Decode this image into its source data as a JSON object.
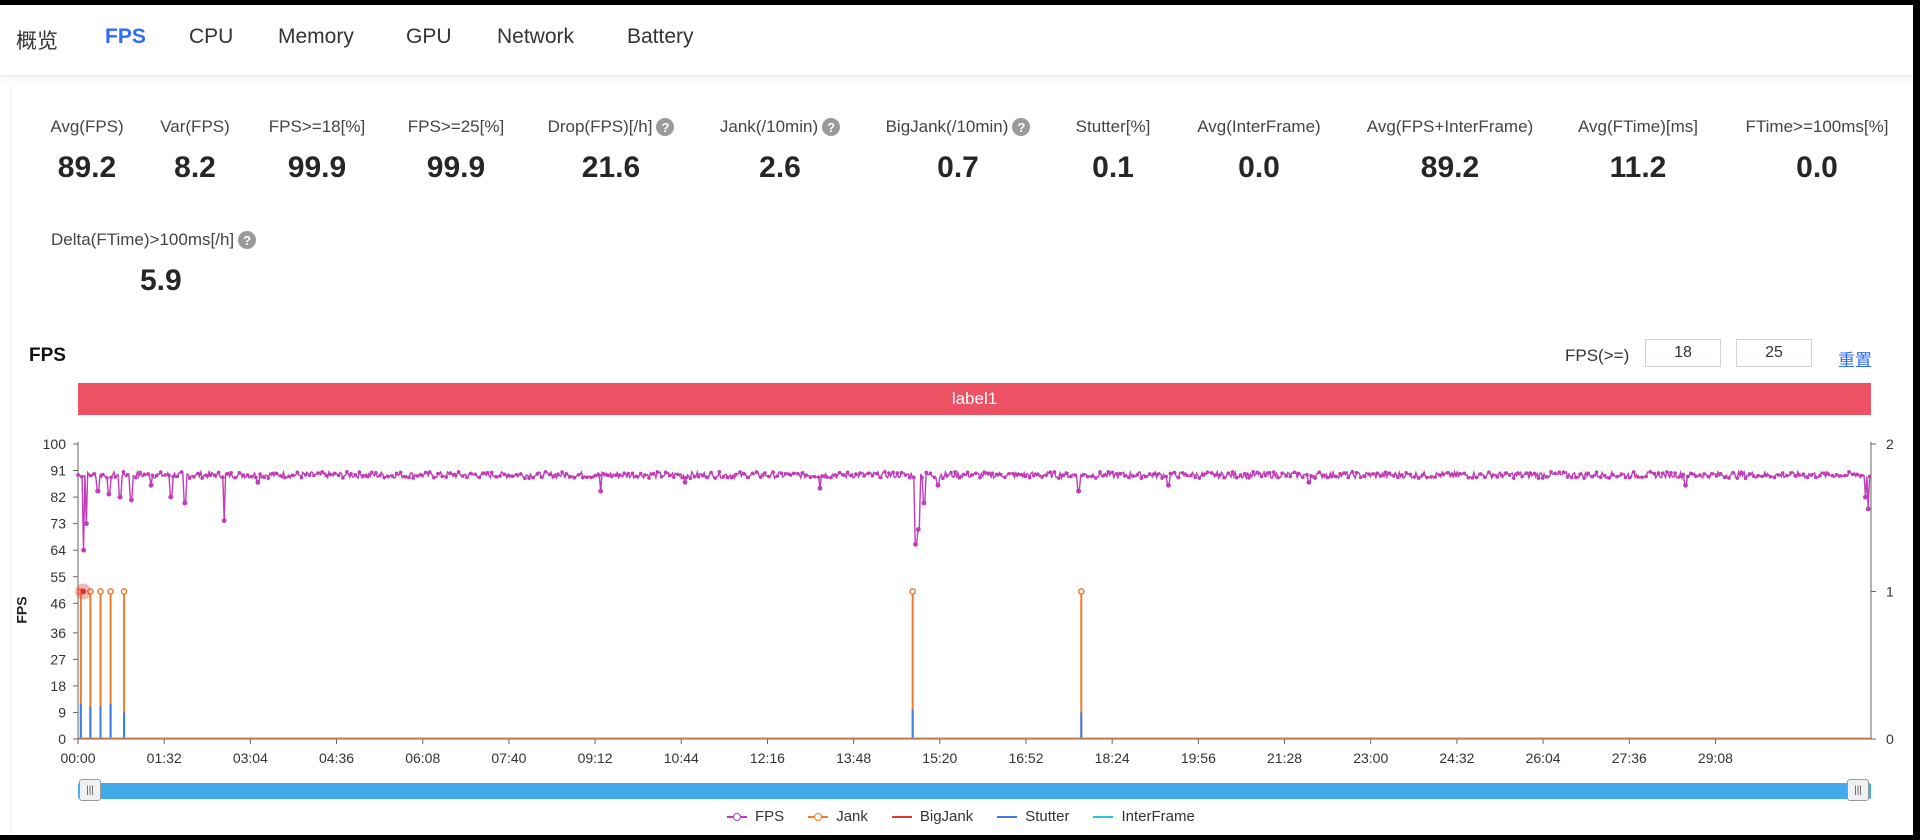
{
  "nav": {
    "tabs": [
      {
        "label": "概览"
      },
      {
        "label": "FPS"
      },
      {
        "label": "CPU"
      },
      {
        "label": "Memory"
      },
      {
        "label": "GPU"
      },
      {
        "label": "Network"
      },
      {
        "label": "Battery"
      }
    ],
    "active": "FPS"
  },
  "metrics": [
    {
      "label": "Avg(FPS)",
      "value": "89.2",
      "help": false
    },
    {
      "label": "Var(FPS)",
      "value": "8.2",
      "help": false
    },
    {
      "label": "FPS>=18[%]",
      "value": "99.9",
      "help": false
    },
    {
      "label": "FPS>=25[%]",
      "value": "99.9",
      "help": false
    },
    {
      "label": "Drop(FPS)[/h]",
      "value": "21.6",
      "help": true
    },
    {
      "label": "Jank(/10min)",
      "value": "2.6",
      "help": true
    },
    {
      "label": "BigJank(/10min)",
      "value": "0.7",
      "help": true
    },
    {
      "label": "Stutter[%]",
      "value": "0.1",
      "help": false
    },
    {
      "label": "Avg(InterFrame)",
      "value": "0.0",
      "help": false
    },
    {
      "label": "Avg(FPS+InterFrame)",
      "value": "89.2",
      "help": false
    },
    {
      "label": "Avg(FTime)[ms]",
      "value": "11.2",
      "help": false
    },
    {
      "label": "FTime>=100ms[%]",
      "value": "0.0",
      "help": false
    },
    {
      "label": "Delta(FTime)>100ms[/h]",
      "value": "5.9",
      "help": true
    }
  ],
  "help_glyph": "?",
  "chart_section": {
    "title": "FPS",
    "threshold_label": "FPS(>=)",
    "threshold_low": "18",
    "threshold_high": "25",
    "reset_label": "重置",
    "band_label": "label1"
  },
  "chart_data": {
    "type": "line",
    "title": "FPS",
    "ylabel": "FPS",
    "ylim": [
      0,
      100
    ],
    "yticks": [
      "0",
      "9",
      "18",
      "27",
      "36",
      "46",
      "55",
      "64",
      "73",
      "82",
      "91",
      "100"
    ],
    "y2lim": [
      0,
      2
    ],
    "y2ticks": [
      "0",
      "1",
      "2"
    ],
    "xticks": [
      "00:00",
      "01:32",
      "03:04",
      "04:36",
      "06:08",
      "07:40",
      "09:12",
      "10:44",
      "12:16",
      "13:48",
      "15:20",
      "16:52",
      "18:24",
      "19:56",
      "21:28",
      "23:00",
      "24:32",
      "26:04",
      "27:36",
      "29:08"
    ],
    "x_range_min": [
      0,
      31.9
    ],
    "series": [
      {
        "name": "FPS",
        "color": "#c03cb8",
        "axis": "left",
        "baseline": 89.5,
        "dips": [
          [
            0.1,
            64
          ],
          [
            0.15,
            73
          ],
          [
            0.35,
            84
          ],
          [
            0.55,
            83
          ],
          [
            0.75,
            82
          ],
          [
            0.95,
            81
          ],
          [
            1.3,
            86
          ],
          [
            1.65,
            82
          ],
          [
            1.9,
            80
          ],
          [
            2.6,
            74
          ],
          [
            3.2,
            87
          ],
          [
            9.3,
            84
          ],
          [
            10.8,
            87
          ],
          [
            13.2,
            85
          ],
          [
            14.9,
            66
          ],
          [
            14.95,
            71
          ],
          [
            15.05,
            80
          ],
          [
            15.3,
            86
          ],
          [
            17.8,
            84
          ],
          [
            19.4,
            86
          ],
          [
            21.9,
            87
          ],
          [
            28.6,
            86
          ],
          [
            31.8,
            82
          ],
          [
            31.85,
            78
          ]
        ]
      },
      {
        "name": "Jank",
        "color": "#f07b2c",
        "axis": "right",
        "events": [
          [
            0.05,
            1
          ],
          [
            0.22,
            1
          ],
          [
            0.4,
            1
          ],
          [
            0.58,
            1
          ],
          [
            0.82,
            1
          ],
          [
            14.85,
            1
          ],
          [
            17.85,
            1
          ]
        ]
      },
      {
        "name": "BigJank",
        "color": "#e3342f",
        "axis": "right",
        "events": [
          [
            0.02,
            1
          ]
        ]
      },
      {
        "name": "Stutter",
        "color": "#3c7ee6",
        "axis": "left",
        "events": [
          [
            0.05,
            12
          ],
          [
            0.22,
            11
          ],
          [
            0.4,
            11
          ],
          [
            0.58,
            12
          ],
          [
            0.82,
            9
          ],
          [
            14.85,
            10
          ],
          [
            17.85,
            9
          ]
        ]
      },
      {
        "name": "InterFrame",
        "color": "#2ec1e0",
        "axis": "left",
        "events": []
      }
    ]
  },
  "legend": [
    {
      "name": "FPS",
      "color": "#c03cb8",
      "marker": true
    },
    {
      "name": "Jank",
      "color": "#f07b2c",
      "marker": true
    },
    {
      "name": "BigJank",
      "color": "#e3342f",
      "marker": false
    },
    {
      "name": "Stutter",
      "color": "#3c7ee6",
      "marker": false
    },
    {
      "name": "InterFrame",
      "color": "#2ec1e0",
      "marker": false
    }
  ],
  "zoom_range": {
    "start_percent": 0,
    "end_percent": 100
  }
}
